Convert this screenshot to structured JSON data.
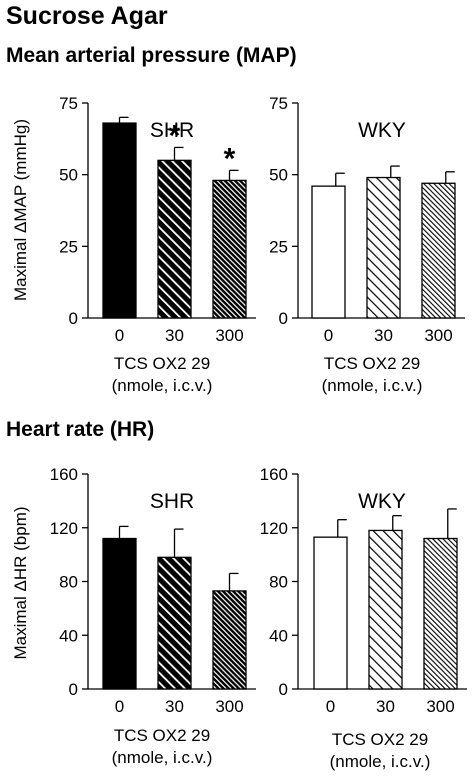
{
  "figure_title": "Sucrose Agar",
  "sections": {
    "map": {
      "heading": "Mean arterial pressure (MAP)"
    },
    "hr": {
      "heading": "Heart rate (HR)"
    }
  },
  "colors": {
    "shr_fill": "#000000",
    "wky_fill": "#ffffff",
    "stroke": "#000000"
  },
  "chart_data": [
    {
      "type": "bar",
      "title": "SHR",
      "ylabel": "Maximal ΔMAP (mmHg)",
      "xlabel": "TCS OX2 29",
      "xlabel_sub": "(nmole, i.c.v.)",
      "categories": [
        "0",
        "30",
        "300"
      ],
      "values": [
        68,
        55,
        48
      ],
      "errors": [
        2,
        4.5,
        3.5
      ],
      "significance": [
        "",
        "*",
        "*"
      ],
      "ylim": [
        0,
        75
      ],
      "yticks": [
        "0",
        "25",
        "50",
        "75"
      ],
      "fill": "#000000",
      "patterns": [
        "solid",
        "hatch-wide",
        "hatch-dense"
      ]
    },
    {
      "type": "bar",
      "title": "WKY",
      "ylabel": "",
      "xlabel": "TCS OX2 29",
      "xlabel_sub": "(nmole, i.c.v.)",
      "categories": [
        "0",
        "30",
        "300"
      ],
      "values": [
        46,
        49,
        47
      ],
      "errors": [
        4.5,
        4,
        4
      ],
      "significance": [
        "",
        "",
        ""
      ],
      "ylim": [
        0,
        75
      ],
      "yticks": [
        "0",
        "25",
        "50",
        "75"
      ],
      "fill": "#ffffff",
      "patterns": [
        "solid",
        "hatch-wide",
        "hatch-dense"
      ]
    },
    {
      "type": "bar",
      "title": "SHR",
      "ylabel": "Maximal ΔHR (bpm)",
      "xlabel": "TCS OX2 29",
      "xlabel_sub": "(nmole, i.c.v.)",
      "categories": [
        "0",
        "30",
        "300"
      ],
      "values": [
        112,
        98,
        73
      ],
      "errors": [
        9,
        21,
        13
      ],
      "significance": [
        "",
        "",
        ""
      ],
      "ylim": [
        0,
        160
      ],
      "yticks": [
        "0",
        "40",
        "80",
        "120",
        "160"
      ],
      "fill": "#000000",
      "patterns": [
        "solid",
        "hatch-wide",
        "hatch-dense"
      ]
    },
    {
      "type": "bar",
      "title": "WKY",
      "ylabel": "",
      "xlabel": "TCS OX2 29",
      "xlabel_sub": "(nmole, i.c.v.)",
      "categories": [
        "0",
        "30",
        "300"
      ],
      "values": [
        113,
        118,
        112
      ],
      "errors": [
        13,
        11,
        22
      ],
      "significance": [
        "",
        "",
        ""
      ],
      "ylim": [
        0,
        160
      ],
      "yticks": [
        "0",
        "40",
        "80",
        "120",
        "160"
      ],
      "fill": "#ffffff",
      "patterns": [
        "solid",
        "hatch-wide",
        "hatch-dense"
      ]
    }
  ]
}
